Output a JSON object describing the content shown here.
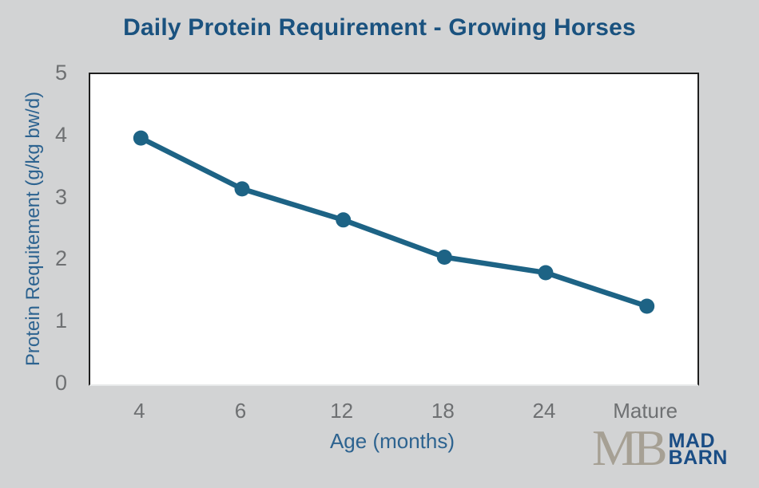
{
  "chart_data": {
    "type": "line",
    "title": "Daily Protein Requirement - Growing Horses",
    "categories": [
      "4",
      "6",
      "12",
      "18",
      "24",
      "Mature"
    ],
    "values": [
      3.97,
      3.15,
      2.65,
      2.05,
      1.8,
      1.26
    ],
    "series": [
      {
        "name": "Daily protein requirement",
        "values": [
          3.97,
          3.15,
          2.65,
          2.05,
          1.8,
          1.26
        ]
      }
    ],
    "xlabel": "Age (months)",
    "ylabel": "Protein Requitement (g/kg bw/d)",
    "ylim": [
      0,
      5
    ],
    "yticks": [
      0,
      1,
      2,
      3,
      4,
      5
    ],
    "grid": false,
    "legend": "none",
    "marker": "circle",
    "line_color": "#1d6385"
  },
  "colors": {
    "background": "#d2d3d4",
    "plot_background": "#ffffff",
    "plot_border": "#1f1f1f",
    "title": "#1a527f",
    "axis_labels": "#2d6390",
    "tick_labels": "#6e7072",
    "line": "#1d6385",
    "logo_monogram": "#a6a094",
    "logo_wordmark": "#1a4d85"
  },
  "logo": {
    "monogram": "MB",
    "line1": "MAD",
    "line2": "BARN"
  }
}
